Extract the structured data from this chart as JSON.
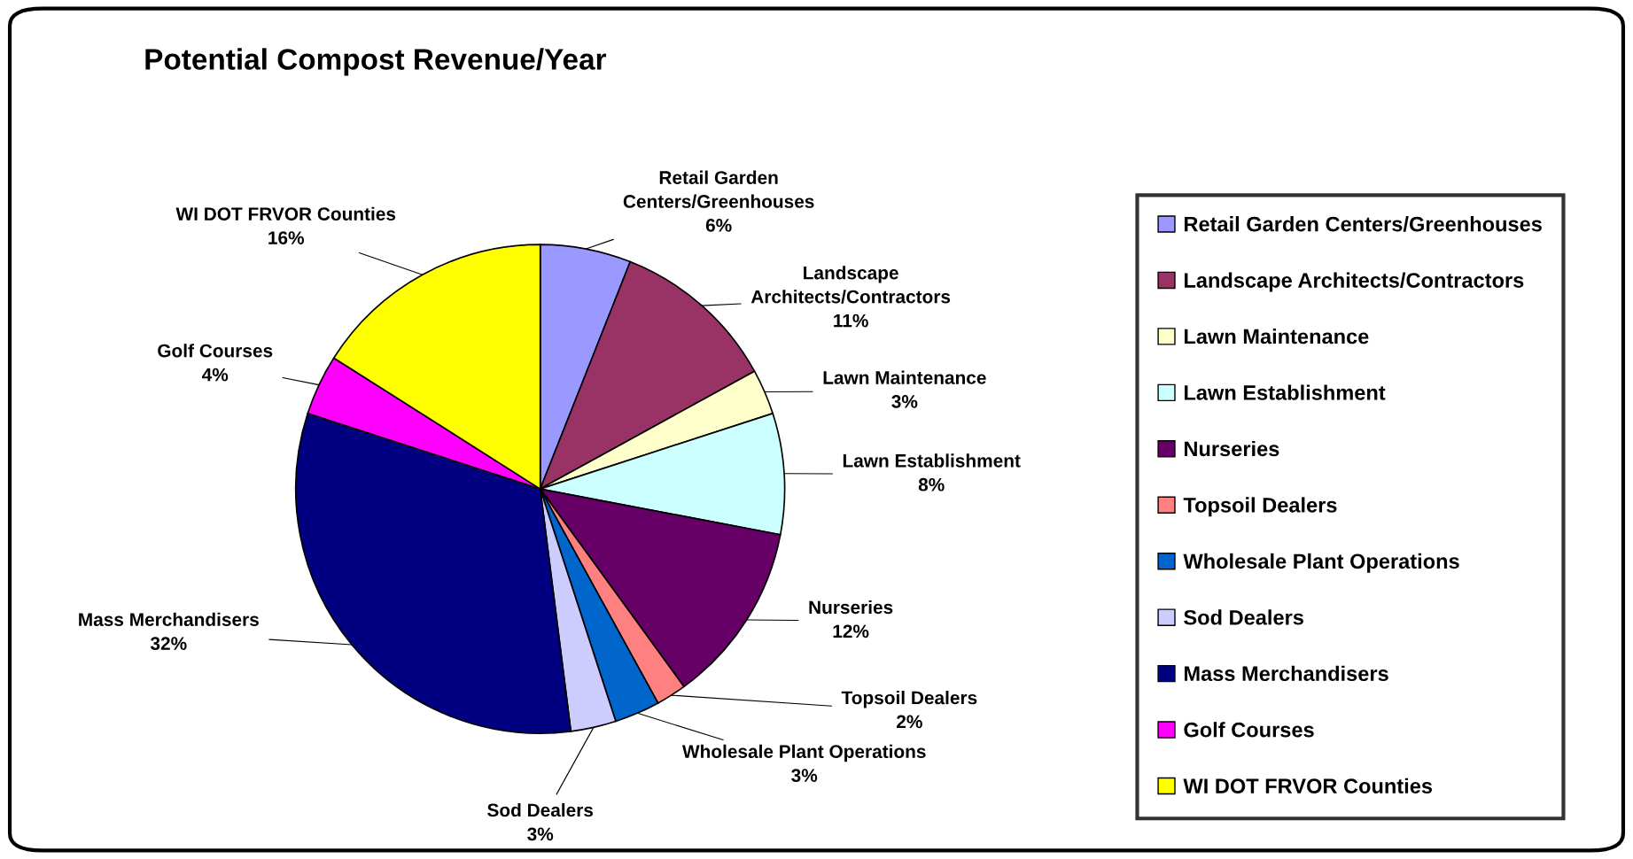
{
  "chart_data": {
    "type": "pie",
    "title": "Potential Compost Revenue/Year",
    "categories": [
      "Retail Garden Centers/Greenhouses",
      "Landscape Architects/Contractors",
      "Lawn Maintenance",
      "Lawn Establishment",
      "Nurseries",
      "Topsoil Dealers",
      "Wholesale Plant Operations",
      "Sod Dealers",
      "Mass Merchandisers",
      "Golf Courses",
      "WI DOT FRVOR Counties"
    ],
    "values": [
      6,
      11,
      3,
      8,
      12,
      2,
      3,
      3,
      32,
      4,
      16
    ],
    "colors": [
      "#9999ff",
      "#993366",
      "#ffffcc",
      "#ccffff",
      "#660066",
      "#ff8080",
      "#0066cc",
      "#ccccff",
      "#000080",
      "#ff00ff",
      "#ffff00"
    ],
    "value_labels": [
      "6%",
      "11%",
      "3%",
      "8%",
      "12%",
      "2%",
      "3%",
      "3%",
      "32%",
      "4%",
      "16%"
    ],
    "legend": "right"
  }
}
